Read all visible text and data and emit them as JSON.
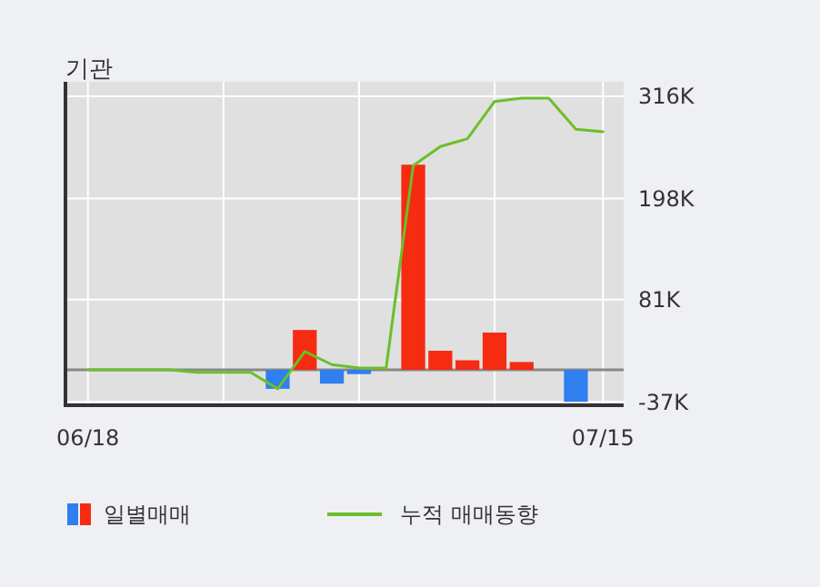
{
  "chart_data": {
    "type": "bar",
    "title": "기관",
    "categories": [
      "06/18",
      null,
      null,
      null,
      null,
      null,
      null,
      null,
      null,
      null,
      null,
      null,
      null,
      null,
      null,
      null,
      null,
      null,
      null,
      "07/15"
    ],
    "series": [
      {
        "name": "일별매매",
        "colors": [
          "#f52b12",
          "#f52b12",
          "#f52b12",
          "#f52b12",
          "#f52b12",
          "#f52b12",
          "#f52b12",
          "#2f7fef",
          "#f52b12",
          "#2f7fef",
          "#2f7fef",
          "#f52b12",
          "#f52b12",
          "#f52b12",
          "#f52b12",
          "#f52b12",
          "#f52b12",
          "#f52b12",
          "#2f7fef",
          "#f52b12"
        ],
        "values": [
          0,
          0,
          0,
          0,
          0,
          0,
          0,
          -22,
          46,
          -16,
          -5,
          0,
          237,
          22,
          11,
          43,
          9,
          0,
          -37,
          0
        ]
      },
      {
        "name": "누적 매매동향",
        "type": "line",
        "color": "#6cbf2a",
        "values": [
          0,
          0,
          0,
          0,
          -3,
          -3,
          -3,
          -22,
          21,
          6,
          2,
          2,
          236,
          258,
          267,
          310,
          314,
          314,
          278,
          275
        ]
      }
    ],
    "ylim": [
      -41,
      316
    ],
    "yticks": [
      {
        "value": -37,
        "label": "-37K"
      },
      {
        "value": 81,
        "label": "81K"
      },
      {
        "value": 198,
        "label": "198K"
      },
      {
        "value": 316,
        "label": "316K"
      }
    ],
    "grid": true,
    "legend": "bottom"
  }
}
